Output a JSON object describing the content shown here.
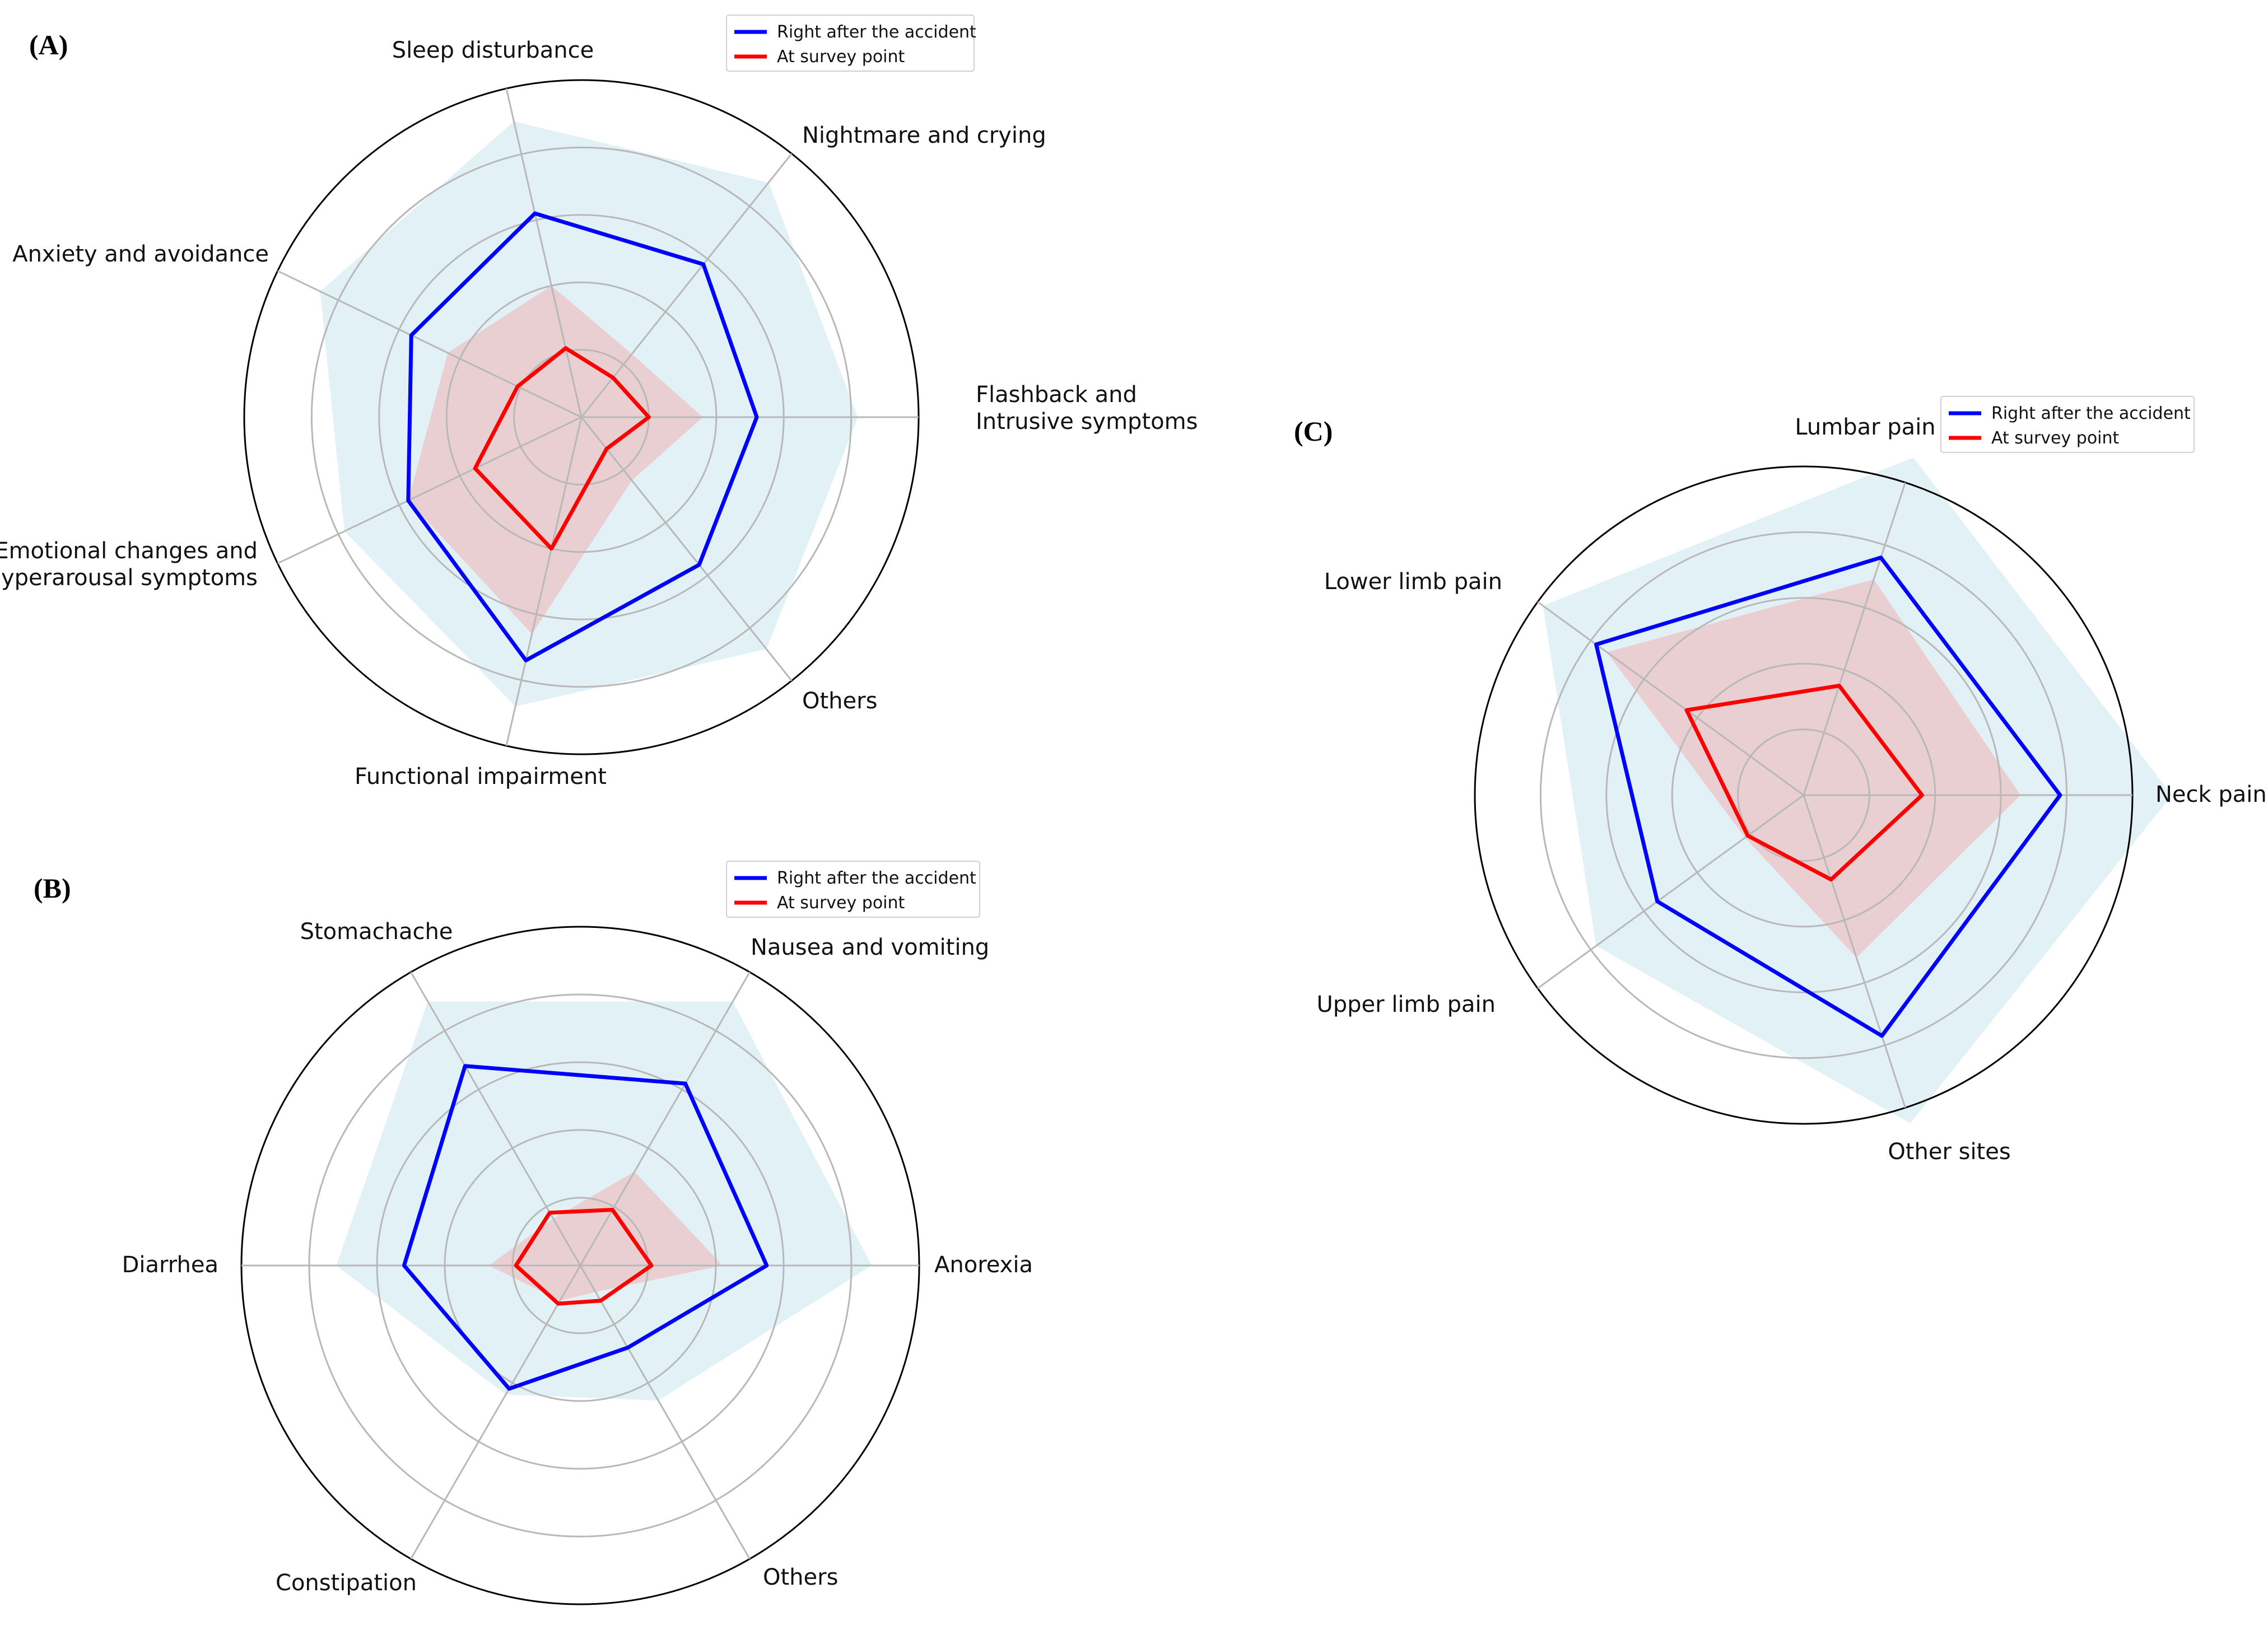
{
  "chart_data": [
    {
      "id": "A",
      "type": "radar",
      "panel_label": "(A)",
      "categories": [
        [
          "Flashback and",
          "Intrusive symptoms"
        ],
        [
          "Nightmare and crying"
        ],
        [
          "Sleep disturbance"
        ],
        [
          "Anxiety and avoidance"
        ],
        [
          "Emotional changes and",
          "hyperarousal symptoms"
        ],
        [
          "Functional impairment"
        ],
        [
          "Others"
        ]
      ],
      "rmax": 5,
      "rings": [
        1,
        2,
        3,
        4,
        5
      ],
      "series": [
        {
          "name": "Right after the accident",
          "color": "#0000ff",
          "values": [
            2.6,
            2.9,
            3.1,
            2.8,
            2.85,
            3.7,
            2.8
          ]
        },
        {
          "name": "At survey point",
          "color": "#ff0000",
          "values": [
            1.0,
            0.75,
            1.05,
            1.05,
            1.75,
            2.0,
            0.6
          ]
        }
      ],
      "bands": [
        {
          "color": "#add8e6",
          "opacity": 0.35,
          "values": [
            4.1,
            4.45,
            4.5,
            4.3,
            3.9,
            4.4,
            4.4
          ]
        },
        {
          "color": "#f4a6a6",
          "opacity": 0.45,
          "values": [
            1.8,
            1.2,
            2.0,
            2.2,
            2.85,
            3.3,
            1.2
          ]
        }
      ],
      "legend": [
        "Right after the accident",
        "At survey point"
      ]
    },
    {
      "id": "B",
      "type": "radar",
      "panel_label": "(B)",
      "categories": [
        [
          "Anorexia"
        ],
        [
          "Nausea and vomiting"
        ],
        [
          "Stomachache"
        ],
        [
          "Diarrhea"
        ],
        [
          "Constipation"
        ],
        [
          "Others"
        ]
      ],
      "rmax": 5,
      "rings": [
        1,
        2,
        3,
        4,
        5
      ],
      "series": [
        {
          "name": "Right after the accident",
          "color": "#0000ff",
          "values": [
            2.75,
            3.1,
            3.4,
            2.6,
            2.1,
            1.4
          ]
        },
        {
          "name": "At survey point",
          "color": "#ff0000",
          "values": [
            1.05,
            0.95,
            0.9,
            0.95,
            0.65,
            0.6
          ]
        }
      ],
      "bands": [
        {
          "color": "#add8e6",
          "opacity": 0.35,
          "values": [
            4.3,
            4.5,
            4.5,
            3.6,
            2.2,
            2.3
          ]
        },
        {
          "color": "#f4a6a6",
          "opacity": 0.45,
          "values": [
            2.1,
            1.6,
            0.8,
            1.35,
            0.6,
            0.45
          ]
        }
      ],
      "legend": [
        "Right after the accident",
        "At survey point"
      ]
    },
    {
      "id": "C",
      "type": "radar",
      "panel_label": "(C)",
      "categories": [
        [
          "Neck pain"
        ],
        [
          "Lumbar pain"
        ],
        [
          "Lower limb pain"
        ],
        [
          "Upper limb pain"
        ],
        [
          "Other sites"
        ]
      ],
      "rmax": 5,
      "rings": [
        1,
        2,
        3,
        4,
        5
      ],
      "series": [
        {
          "name": "Right after the accident",
          "color": "#0000ff",
          "values": [
            3.9,
            3.8,
            3.9,
            2.75,
            3.85
          ]
        },
        {
          "name": "At survey point",
          "color": "#ff0000",
          "values": [
            1.8,
            1.75,
            2.2,
            1.05,
            1.35
          ]
        }
      ],
      "bands": [
        {
          "color": "#add8e6",
          "opacity": 0.35,
          "values": [
            5.6,
            5.4,
            4.9,
            3.9,
            5.25
          ]
        },
        {
          "color": "#f4a6a6",
          "opacity": 0.45,
          "values": [
            3.3,
            3.45,
            3.7,
            1.1,
            2.6
          ]
        }
      ],
      "legend": [
        "Right after the accident",
        "At survey point"
      ]
    }
  ]
}
